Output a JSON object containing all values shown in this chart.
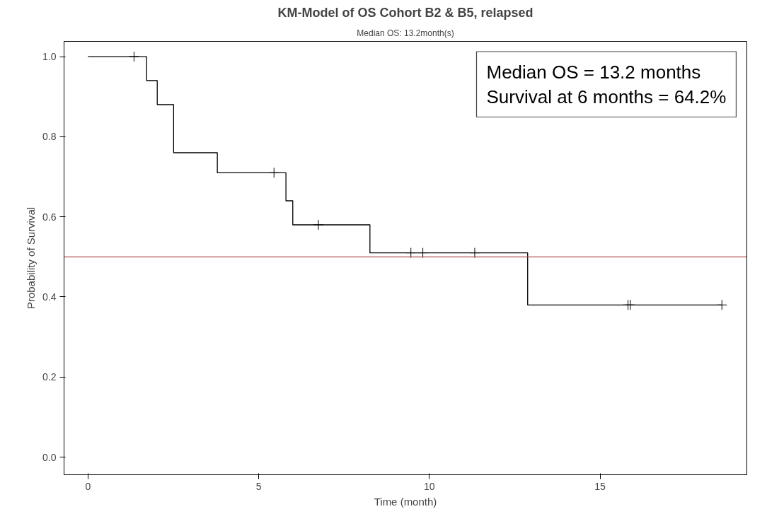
{
  "chart_data": {
    "type": "step",
    "title": "KM-Model of OS Cohort B2 & B5, relapsed",
    "subtitle": "Median OS: 13.2month(s)",
    "xlabel": "Time (month)",
    "ylabel": "Probability of Survival",
    "xlim": [
      -0.7,
      19.3
    ],
    "ylim": [
      -0.044,
      1.038
    ],
    "xticks": [
      0,
      5,
      10,
      15
    ],
    "yticks": [
      {
        "value": 0,
        "label": "0.0"
      },
      {
        "value": 0.2,
        "label": "0.2"
      },
      {
        "value": 0.4,
        "label": "0.4"
      },
      {
        "value": 0.6,
        "label": "0.6"
      },
      {
        "value": 0.8,
        "label": "0.8"
      },
      {
        "value": 1,
        "label": "1.0"
      }
    ],
    "grid": false,
    "series": [
      {
        "color": "#000000",
        "x": [
          0,
          1.72,
          2.03,
          2.51,
          3.79,
          5.8,
          6.0,
          8.26,
          12.88,
          18.57
        ],
        "values": [
          1,
          0.94,
          0.88,
          0.76,
          0.71,
          0.64,
          0.58,
          0.51,
          0.38,
          0.38
        ]
      },
      {
        "type": "scatter",
        "marker": "cross",
        "color": "#000000",
        "x": [
          1.35,
          5.45,
          6.75,
          9.46,
          9.81,
          11.33,
          15.82,
          15.89,
          18.57
        ],
        "values": [
          1,
          0.71,
          0.58,
          0.51,
          0.51,
          0.51,
          0.38,
          0.38,
          0.38
        ]
      }
    ],
    "ref_lines": [
      {
        "axis": "y",
        "value": 0.5,
        "color": "#b05050"
      }
    ],
    "annotations": [
      "Median OS = 13.2 months",
      "Survival at 6 months = 64.2%"
    ]
  }
}
